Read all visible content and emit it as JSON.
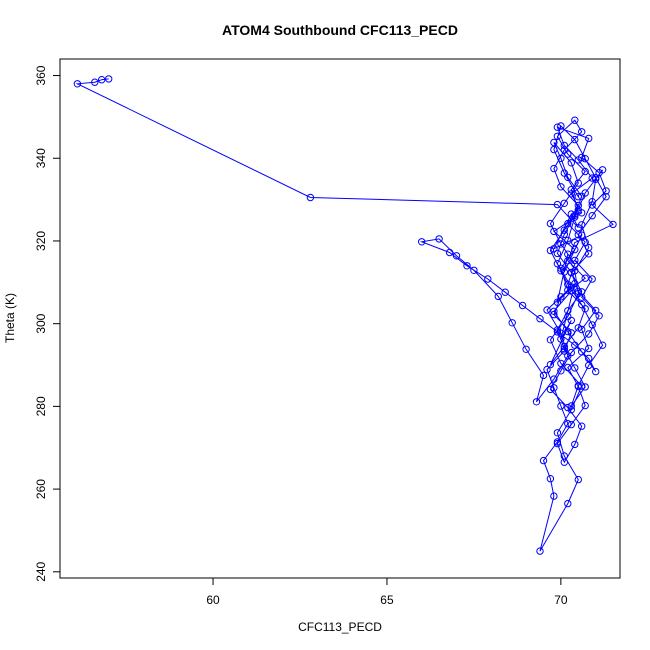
{
  "chart_data": {
    "type": "line",
    "title": "ATOM4 Southbound CFC113_PECD",
    "xlabel": "CFC113_PECD",
    "ylabel": "Theta (K)",
    "xlim": [
      55.6,
      71.7
    ],
    "ylim": [
      238.5,
      364.0
    ],
    "x_ticks": [
      60,
      65,
      70
    ],
    "y_ticks": [
      240,
      260,
      280,
      300,
      320,
      340,
      360
    ],
    "grid": false,
    "legend": "none",
    "marker": "open-circle",
    "series": [
      {
        "color": "#0000ff",
        "x": [
          57.0,
          56.8,
          56.6,
          56.1,
          62.8,
          69.9,
          70.5,
          70.3,
          69.8,
          70.6,
          70.1,
          70.2,
          69.9,
          70.4,
          70.0,
          70.3,
          69.7,
          70.1,
          70.5,
          70.7,
          70.2,
          70.0,
          70.4,
          69.8,
          70.6,
          70.3,
          70.9,
          70.5,
          70.1,
          69.9,
          70.8,
          70.6,
          71.1,
          71.3,
          70.9,
          71.5,
          70.4,
          70.2,
          70.7,
          70.0,
          69.8,
          70.3,
          70.1,
          69.6,
          69.8,
          70.0,
          70.2,
          69.9,
          69.5,
          69.7,
          69.8,
          69.4,
          70.2,
          70.5,
          70.1,
          69.9,
          70.3,
          70.6,
          70.0,
          69.7,
          70.2,
          70.5,
          70.4,
          70.8,
          70.6,
          70.9,
          71.0,
          71.2,
          70.7,
          70.4,
          70.2,
          69.9,
          70.3,
          69.6,
          70.0,
          70.2,
          69.8,
          69.3,
          69.5,
          69.0,
          68.6,
          68.2,
          67.5,
          67.0,
          66.5,
          66.0,
          66.8,
          67.3,
          67.9,
          68.4,
          68.9,
          69.4,
          69.9,
          70.4,
          70.8,
          71.0,
          70.6,
          70.2,
          69.8,
          70.3,
          70.0,
          69.7,
          70.1,
          70.5,
          70.3,
          70.7,
          70.2,
          69.9,
          70.4,
          70.6,
          70.1,
          69.8,
          70.0,
          70.5,
          70.2,
          70.7,
          70.4,
          70.9,
          70.6,
          71.1,
          70.8,
          70.3,
          70.0,
          69.7,
          70.2,
          70.6,
          70.4,
          70.1,
          69.9,
          70.3,
          70.7,
          70.5,
          70.2,
          70.8,
          70.6,
          71.0,
          70.5,
          70.3,
          69.9,
          70.1,
          70.4,
          70.6,
          70.2,
          70.0,
          69.8,
          70.3,
          70.5,
          70.1,
          69.7,
          70.0,
          70.4,
          70.2,
          70.6,
          70.9,
          71.2,
          70.8,
          70.5,
          70.3,
          70.7,
          70.4,
          70.1,
          69.9,
          70.2,
          70.6,
          70.3,
          70.8,
          70.5,
          70.9,
          71.3,
          71.0,
          70.7,
          70.4,
          70.0,
          69.8,
          70.1,
          70.5
        ],
        "y": [
          359.2,
          359.0,
          358.4,
          358.0,
          330.5,
          328.8,
          323.2,
          326.5,
          318.1,
          321.4,
          312.5,
          316.8,
          305.2,
          309.7,
          296.3,
          300.8,
          290.1,
          294.5,
          299.0,
          303.6,
          308.1,
          313.4,
          317.9,
          322.3,
          326.8,
          331.4,
          335.2,
          339.6,
          343.1,
          347.5,
          344.8,
          340.2,
          336.5,
          332.1,
          328.7,
          324.0,
          319.6,
          315.2,
          311.0,
          306.5,
          302.2,
          297.8,
          293.4,
          288.9,
          284.5,
          280.1,
          275.8,
          271.4,
          266.9,
          262.5,
          258.3,
          245.0,
          256.5,
          262.3,
          268.0,
          273.6,
          279.2,
          284.9,
          290.4,
          296.1,
          301.7,
          307.3,
          312.8,
          318.4,
          323.9,
          329.5,
          334.9,
          337.2,
          331.6,
          325.8,
          320.1,
          314.5,
          308.9,
          303.3,
          297.7,
          292.2,
          286.6,
          281.1,
          287.5,
          293.8,
          300.2,
          306.6,
          312.9,
          316.4,
          320.5,
          319.8,
          317.2,
          314.0,
          310.8,
          307.6,
          304.4,
          301.2,
          298.0,
          294.8,
          291.6,
          288.4,
          293.2,
          298.1,
          303.0,
          307.9,
          312.8,
          317.7,
          322.6,
          327.5,
          332.4,
          336.8,
          341.0,
          345.3,
          349.2,
          346.4,
          342.0,
          337.5,
          333.1,
          328.6,
          324.2,
          319.7,
          315.3,
          310.8,
          306.4,
          301.9,
          297.5,
          293.0,
          288.6,
          284.1,
          279.7,
          275.2,
          270.8,
          266.5,
          271.0,
          275.6,
          280.2,
          284.8,
          289.4,
          294.0,
          298.6,
          303.2,
          307.8,
          312.4,
          317.0,
          321.6,
          326.2,
          330.8,
          335.4,
          340.0,
          343.8,
          338.9,
          334.0,
          329.1,
          324.2,
          319.3,
          314.4,
          309.5,
          304.6,
          299.7,
          294.8,
          289.9,
          285.0,
          280.1,
          284.7,
          289.3,
          293.9,
          298.5,
          303.1,
          307.7,
          312.3,
          316.9,
          321.5,
          326.1,
          330.7,
          335.3,
          339.9,
          344.5,
          347.8,
          342.1,
          336.4,
          330.7
        ]
      }
    ]
  }
}
